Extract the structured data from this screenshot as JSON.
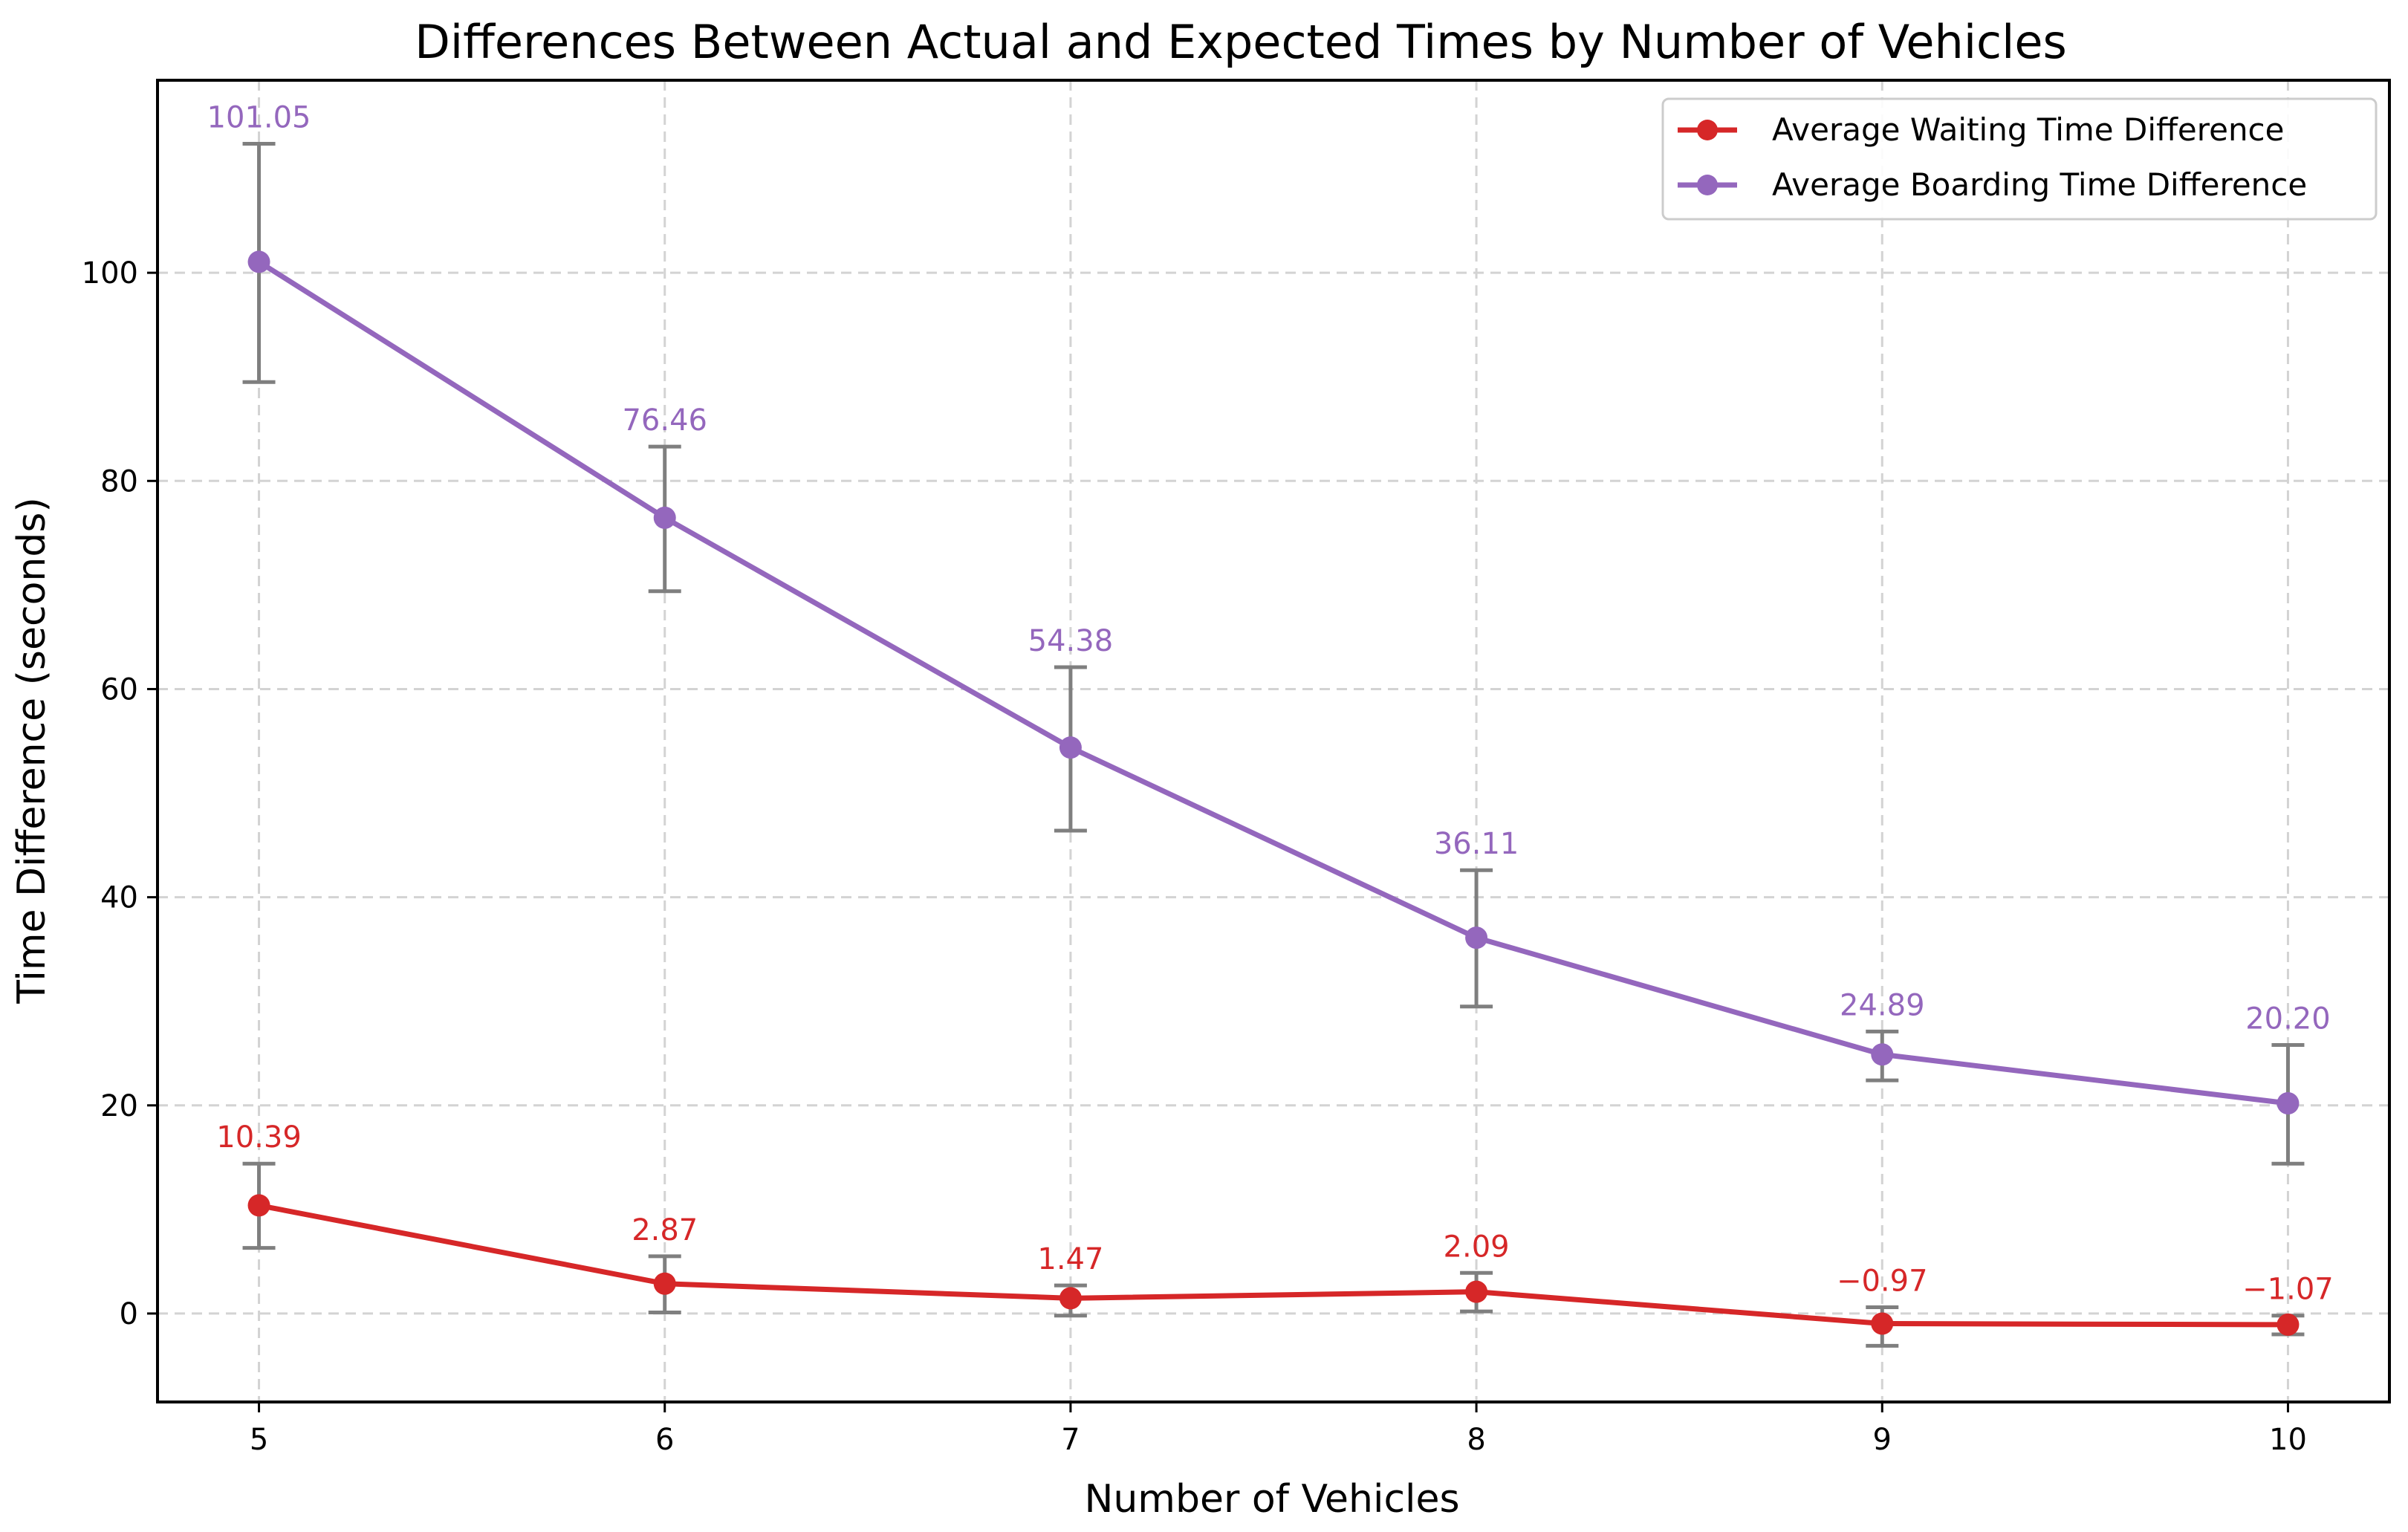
{
  "chart_data": {
    "type": "line",
    "title": "Differences Between Actual and Expected Times by Number of Vehicles",
    "xlabel": "Number of Vehicles",
    "ylabel": "Time Difference (seconds)",
    "x": [
      5,
      6,
      7,
      8,
      9,
      10
    ],
    "xlim": [
      4.75,
      10.25
    ],
    "ylim": [
      -8.5,
      118.5
    ],
    "xticks": [
      "5",
      "6",
      "7",
      "8",
      "9",
      "10"
    ],
    "yticks": [
      0,
      20,
      40,
      60,
      80,
      100
    ],
    "ytick_labels": [
      "0",
      "20",
      "40",
      "60",
      "80",
      "100"
    ],
    "grid": true,
    "legend_position": "top-right",
    "errorbar_color": "#7f7f7f",
    "series": [
      {
        "name": "Average Waiting Time Difference",
        "color": "#d62728",
        "values": [
          10.39,
          2.87,
          1.47,
          2.09,
          -0.97,
          -1.07
        ],
        "labels": [
          "10.39",
          "2.87",
          "1.47",
          "2.09",
          "−0.97",
          "−1.07"
        ],
        "error_low": [
          6.3,
          0.1,
          -0.2,
          0.2,
          -3.1,
          -2.0
        ],
        "error_high": [
          14.4,
          5.5,
          2.7,
          3.9,
          0.6,
          -0.2
        ]
      },
      {
        "name": "Average Boarding Time Difference",
        "color": "#9467bd",
        "values": [
          101.05,
          76.46,
          54.38,
          36.11,
          24.89,
          20.2
        ],
        "labels": [
          "101.05",
          "76.46",
          "54.38",
          "36.11",
          "24.89",
          "20.20"
        ],
        "error_low": [
          89.5,
          69.4,
          46.4,
          29.5,
          22.4,
          14.4
        ],
        "error_high": [
          112.4,
          83.3,
          62.1,
          42.6,
          27.1,
          25.8
        ]
      }
    ]
  }
}
